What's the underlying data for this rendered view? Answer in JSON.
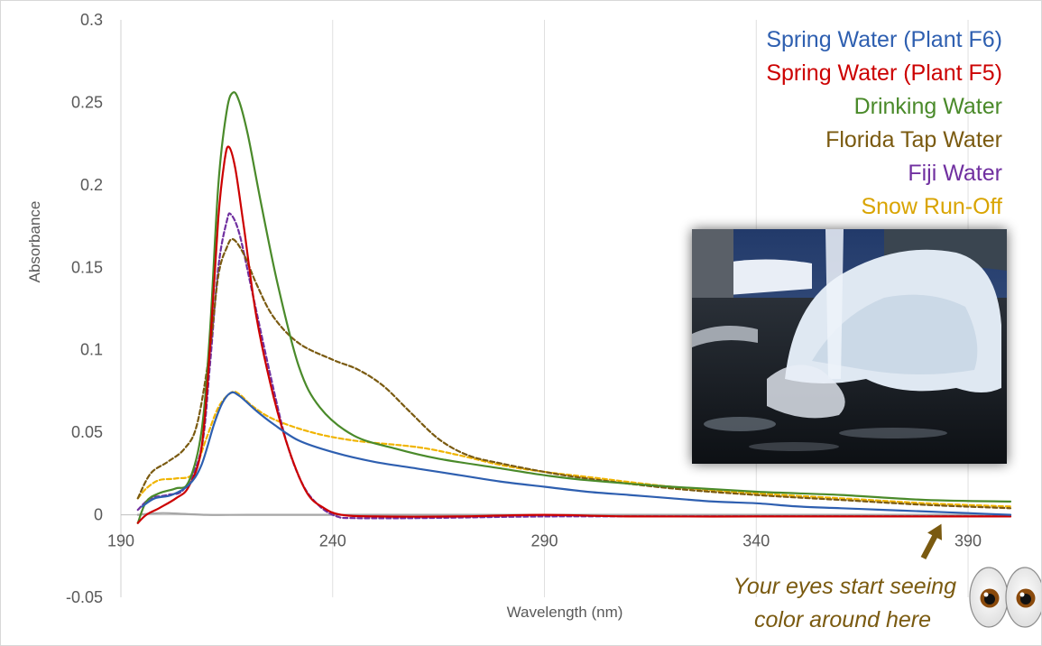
{
  "chart_data": {
    "type": "line",
    "title": "",
    "xlabel": "Wavelength (nm)",
    "ylabel": "Absorbance",
    "xlim": [
      190,
      400
    ],
    "ylim": [
      -0.05,
      0.3
    ],
    "x_ticks": [
      190,
      240,
      290,
      340,
      390
    ],
    "y_ticks": [
      -0.05,
      0,
      0.05,
      0.1,
      0.15,
      0.2,
      0.25,
      0.3
    ],
    "x_tick_labels": [
      "190",
      "240",
      "290",
      "340",
      "390"
    ],
    "y_tick_labels": [
      "-0.05",
      "0",
      "0.05",
      "0.1",
      "0.15",
      "0.2",
      "0.25",
      "0.3"
    ],
    "grid": "vertical",
    "legend_position": "top-right",
    "series": [
      {
        "name": "Spring Water (Plant F6)",
        "color": "#2e5fb0",
        "dash": false,
        "points": [
          [
            195,
            0.005
          ],
          [
            198,
            0.01
          ],
          [
            202,
            0.012
          ],
          [
            206,
            0.018
          ],
          [
            209,
            0.03
          ],
          [
            212,
            0.055
          ],
          [
            214,
            0.068
          ],
          [
            216,
            0.074
          ],
          [
            218,
            0.072
          ],
          [
            222,
            0.063
          ],
          [
            226,
            0.055
          ],
          [
            232,
            0.045
          ],
          [
            240,
            0.038
          ],
          [
            250,
            0.032
          ],
          [
            260,
            0.028
          ],
          [
            270,
            0.024
          ],
          [
            280,
            0.02
          ],
          [
            290,
            0.017
          ],
          [
            300,
            0.014
          ],
          [
            310,
            0.012
          ],
          [
            320,
            0.01
          ],
          [
            330,
            0.008
          ],
          [
            340,
            0.007
          ],
          [
            350,
            0.005
          ],
          [
            360,
            0.004
          ],
          [
            370,
            0.003
          ],
          [
            380,
            0.002
          ],
          [
            390,
            0.001
          ],
          [
            400,
            0.0
          ]
        ]
      },
      {
        "name": "Spring Water (Plant F5)",
        "color": "#cc0000",
        "dash": false,
        "points": [
          [
            194,
            -0.005
          ],
          [
            196,
            0.0
          ],
          [
            199,
            0.004
          ],
          [
            203,
            0.01
          ],
          [
            206,
            0.017
          ],
          [
            209,
            0.04
          ],
          [
            211,
            0.1
          ],
          [
            213,
            0.18
          ],
          [
            214.5,
            0.215
          ],
          [
            215.5,
            0.223
          ],
          [
            217,
            0.21
          ],
          [
            219,
            0.175
          ],
          [
            222,
            0.12
          ],
          [
            226,
            0.072
          ],
          [
            230,
            0.037
          ],
          [
            234,
            0.013
          ],
          [
            238,
            0.004
          ],
          [
            242,
            0.0
          ],
          [
            250,
            -0.001
          ],
          [
            270,
            -0.001
          ],
          [
            290,
            0.0
          ],
          [
            310,
            -0.001
          ],
          [
            340,
            -0.001
          ],
          [
            370,
            -0.001
          ],
          [
            400,
            -0.001
          ]
        ]
      },
      {
        "name": "Drinking Water",
        "color": "#4a8a2a",
        "dash": false,
        "points": [
          [
            194,
            -0.005
          ],
          [
            196,
            0.008
          ],
          [
            199,
            0.013
          ],
          [
            203,
            0.016
          ],
          [
            206,
            0.02
          ],
          [
            209,
            0.05
          ],
          [
            211,
            0.11
          ],
          [
            213,
            0.2
          ],
          [
            215,
            0.245
          ],
          [
            216.5,
            0.256
          ],
          [
            218,
            0.25
          ],
          [
            220,
            0.23
          ],
          [
            223,
            0.19
          ],
          [
            227,
            0.14
          ],
          [
            232,
            0.09
          ],
          [
            237,
            0.065
          ],
          [
            245,
            0.048
          ],
          [
            255,
            0.04
          ],
          [
            265,
            0.034
          ],
          [
            280,
            0.028
          ],
          [
            290,
            0.024
          ],
          [
            300,
            0.021
          ],
          [
            320,
            0.017
          ],
          [
            340,
            0.014
          ],
          [
            360,
            0.012
          ],
          [
            380,
            0.009
          ],
          [
            400,
            0.008
          ]
        ]
      },
      {
        "name": "Florida Tap Water",
        "color": "#7a5a10",
        "dash": true,
        "points": [
          [
            194,
            0.01
          ],
          [
            197,
            0.025
          ],
          [
            201,
            0.032
          ],
          [
            205,
            0.04
          ],
          [
            208,
            0.055
          ],
          [
            211,
            0.1
          ],
          [
            213,
            0.145
          ],
          [
            215,
            0.162
          ],
          [
            216.5,
            0.167
          ],
          [
            219,
            0.158
          ],
          [
            222,
            0.14
          ],
          [
            226,
            0.12
          ],
          [
            232,
            0.104
          ],
          [
            240,
            0.094
          ],
          [
            246,
            0.088
          ],
          [
            252,
            0.078
          ],
          [
            258,
            0.063
          ],
          [
            265,
            0.046
          ],
          [
            272,
            0.036
          ],
          [
            280,
            0.031
          ],
          [
            290,
            0.026
          ],
          [
            300,
            0.022
          ],
          [
            320,
            0.016
          ],
          [
            340,
            0.012
          ],
          [
            360,
            0.009
          ],
          [
            380,
            0.006
          ],
          [
            400,
            0.004
          ]
        ]
      },
      {
        "name": "Fiji Water",
        "color": "#7030a0",
        "dash": true,
        "points": [
          [
            194,
            0.003
          ],
          [
            197,
            0.01
          ],
          [
            201,
            0.012
          ],
          [
            205,
            0.016
          ],
          [
            209,
            0.04
          ],
          [
            211,
            0.09
          ],
          [
            213,
            0.15
          ],
          [
            215,
            0.178
          ],
          [
            216,
            0.182
          ],
          [
            218,
            0.17
          ],
          [
            221,
            0.135
          ],
          [
            225,
            0.088
          ],
          [
            229,
            0.045
          ],
          [
            233,
            0.018
          ],
          [
            237,
            0.005
          ],
          [
            241,
            -0.001
          ],
          [
            245,
            -0.002
          ],
          [
            260,
            -0.002
          ],
          [
            290,
            -0.001
          ],
          [
            320,
            -0.001
          ],
          [
            350,
            -0.001
          ],
          [
            380,
            -0.001
          ],
          [
            400,
            -0.001
          ]
        ]
      },
      {
        "name": "Snow Run-Off",
        "color": "#f0b400",
        "dash": true,
        "points": [
          [
            194,
            0.01
          ],
          [
            196,
            0.016
          ],
          [
            199,
            0.021
          ],
          [
            203,
            0.022
          ],
          [
            207,
            0.025
          ],
          [
            210,
            0.045
          ],
          [
            213,
            0.065
          ],
          [
            216,
            0.074
          ],
          [
            218,
            0.073
          ],
          [
            221,
            0.066
          ],
          [
            226,
            0.058
          ],
          [
            235,
            0.05
          ],
          [
            245,
            0.045
          ],
          [
            260,
            0.041
          ],
          [
            270,
            0.036
          ],
          [
            280,
            0.03
          ],
          [
            290,
            0.026
          ],
          [
            300,
            0.023
          ],
          [
            320,
            0.017
          ],
          [
            340,
            0.013
          ],
          [
            360,
            0.01
          ],
          [
            380,
            0.007
          ],
          [
            400,
            0.005
          ]
        ]
      },
      {
        "name": "",
        "color": "#a6a6a6",
        "dash": false,
        "points": [
          [
            194,
            0.0
          ],
          [
            200,
            0.001
          ],
          [
            210,
            0.0
          ],
          [
            220,
            0.0
          ],
          [
            235,
            0.0
          ],
          [
            260,
            0.0
          ],
          [
            300,
            0.0
          ],
          [
            350,
            0.0
          ],
          [
            400,
            0.0
          ]
        ]
      }
    ]
  },
  "legend": [
    {
      "label": "Spring Water (Plant F6)",
      "color": "#2e5fb0"
    },
    {
      "label": "Spring Water (Plant F5)",
      "color": "#cc0000"
    },
    {
      "label": "Drinking Water",
      "color": "#4a8a2a"
    },
    {
      "label": "Florida Tap Water",
      "color": "#7a5a10"
    },
    {
      "label": "Fiji Water",
      "color": "#7030a0"
    },
    {
      "label": "Snow Run-Off",
      "color": "#d9a400"
    }
  ],
  "annotation": {
    "line1": "Your eyes start seeing",
    "line2": "color around here",
    "arrow_color": "#7a5a10",
    "arrow_target_x": 382
  },
  "photo": {
    "icon": "water-fountain-ice-photo"
  },
  "emoji": {
    "icon": "eyes-emoji"
  }
}
